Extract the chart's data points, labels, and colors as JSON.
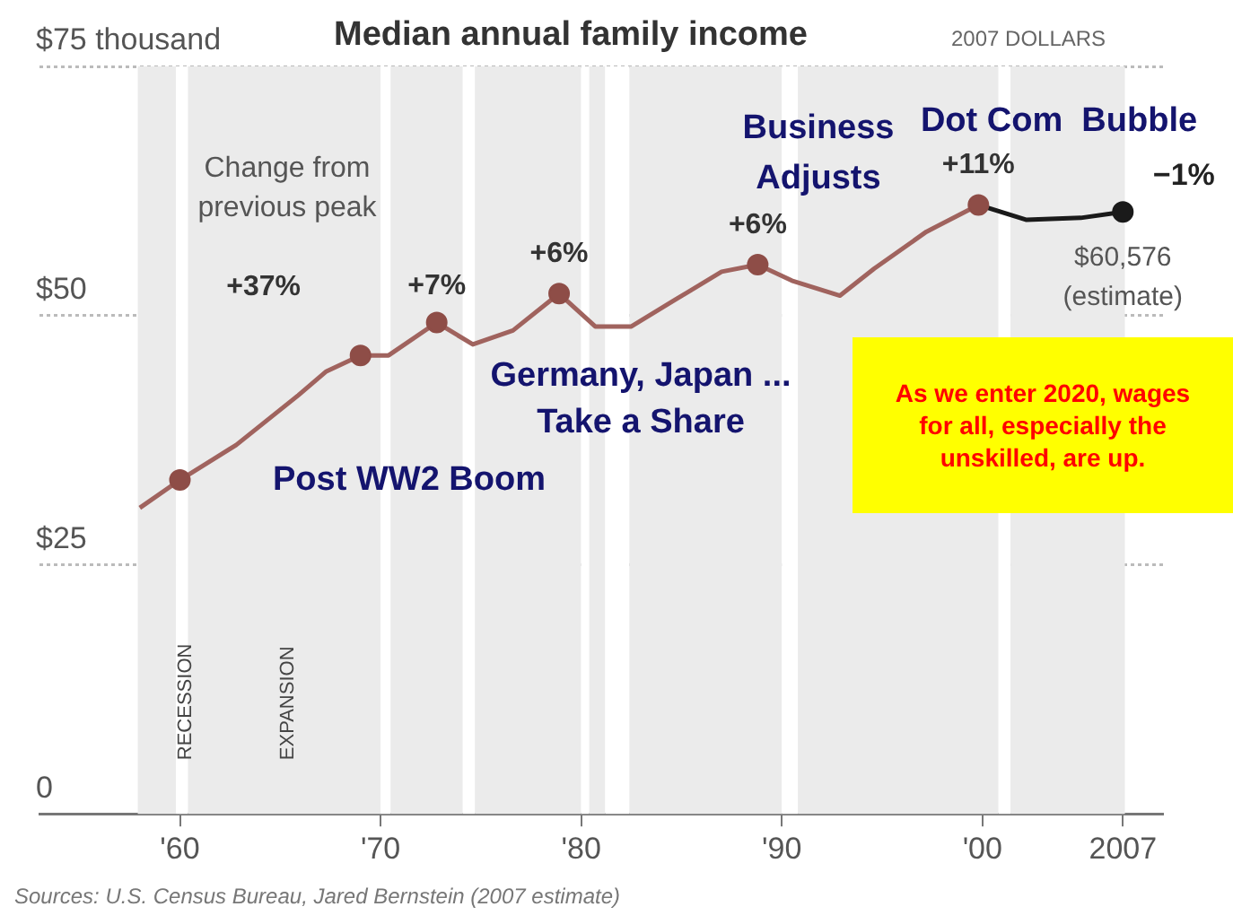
{
  "chart_data": {
    "type": "line",
    "title": "Median annual family income",
    "subtitle": "2007 DOLLARS",
    "xlim": [
      1953,
      2009
    ],
    "xticks": [
      {
        "value": 1960,
        "label": "'60"
      },
      {
        "value": 1970,
        "label": "'70"
      },
      {
        "value": 1980,
        "label": "'80"
      },
      {
        "value": 1990,
        "label": "'90"
      },
      {
        "value": 2000,
        "label": "'00"
      },
      2007
    ],
    "ylim": [
      0,
      75
    ],
    "yticks": [
      0,
      {
        "value": 25,
        "label": "$25"
      },
      {
        "value": 50,
        "label": "$50"
      },
      {
        "value": 75,
        "label": "$75 thousand"
      }
    ],
    "grid": "y",
    "legend": false,
    "marker": "none",
    "series": [
      {
        "color": "#a0635e",
        "x": [
          1958,
          1960,
          1962.8,
          1965.9,
          1967.3,
          1969,
          1970.4,
          1972.8,
          1974.6,
          1976.6,
          1978.9,
          1980.7,
          1982.5,
          1984.7,
          1987,
          1988.8,
          1990.5,
          1992.9,
          1994.6,
          1997.2,
          1999.8
        ],
        "values": [
          30.7,
          33.5,
          37,
          42,
          44.4,
          46,
          46,
          49.3,
          47.1,
          48.5,
          52.2,
          48.9,
          48.9,
          51.6,
          54.4,
          55.1,
          53.5,
          52,
          54.7,
          58.4,
          61.1
        ]
      },
      {
        "color": "#1a1a1a",
        "x": [
          1999.8,
          2002.2,
          2004.9,
          2007
        ],
        "values": [
          61.1,
          59.6,
          59.8,
          60.4
        ]
      },
      {
        "type": "scatter",
        "marker": "circle",
        "color": "#8e4d47",
        "x": [
          1960,
          1969,
          1972.8,
          1978.9,
          1988.8,
          1999.8
        ],
        "values": [
          33.5,
          46,
          49.3,
          52.2,
          55.1,
          61.1
        ]
      },
      {
        "type": "scatter",
        "marker": "circle",
        "color": "#1a1a1a",
        "x": [
          2007
        ],
        "values": [
          60.4
        ]
      }
    ],
    "bands": [
      {
        "axis": "x",
        "from": 1957.9,
        "to": 1959.8,
        "color": "#ebebeb"
      },
      {
        "axis": "x",
        "from": 1959.8,
        "to": 1960.4,
        "color": "#ffffff",
        "label": "RECESSION"
      },
      {
        "axis": "x",
        "from": 1960.4,
        "to": 1970,
        "color": "#ebebeb",
        "label": "EXPANSION"
      },
      {
        "axis": "x",
        "from": 1970,
        "to": 1970.5,
        "color": "#ffffff"
      },
      {
        "axis": "x",
        "from": 1970.5,
        "to": 1974.1,
        "color": "#ebebeb"
      },
      {
        "axis": "x",
        "from": 1974.1,
        "to": 1974.7,
        "color": "#ffffff"
      },
      {
        "axis": "x",
        "from": 1974.7,
        "to": 1980,
        "color": "#ebebeb"
      },
      {
        "axis": "x",
        "from": 1980,
        "to": 1980.4,
        "color": "#ffffff"
      },
      {
        "axis": "x",
        "from": 1980.4,
        "to": 1981.2,
        "color": "#ebebeb"
      },
      {
        "axis": "x",
        "from": 1981.2,
        "to": 1982.4,
        "color": "#ffffff"
      },
      {
        "axis": "x",
        "from": 1982.4,
        "to": 1990,
        "color": "#ebebeb"
      },
      {
        "axis": "x",
        "from": 1990,
        "to": 1990.8,
        "color": "#ffffff"
      },
      {
        "axis": "x",
        "from": 1990.8,
        "to": 2000.8,
        "color": "#ebebeb"
      },
      {
        "axis": "x",
        "from": 2000.8,
        "to": 2001.4,
        "color": "#ffffff"
      },
      {
        "axis": "x",
        "from": 2001.4,
        "to": 2007.1,
        "color": "#ebebeb"
      }
    ],
    "annotations": [
      {
        "text": "+37%",
        "x": 1969,
        "y": 46
      },
      {
        "text": "+7%",
        "x": 1972.8,
        "y": 49.3
      },
      {
        "text": "+6%",
        "x": 1978.9,
        "y": 52.2
      },
      {
        "text": "+6%",
        "x": 1988.8,
        "y": 55.1
      },
      {
        "text": "+11%",
        "x": 1999.8,
        "y": 61.1
      },
      {
        "text": "−1%",
        "x": 2007,
        "y": 60.4
      },
      {
        "text": "$60,576 (estimate)",
        "x": 2007,
        "y": 60.4
      },
      "Change from previous peak",
      "Post WW2 Boom",
      "Germany, Japan ... Take a Share",
      "Business Adjusts",
      "Dot Com  Bubble",
      "As we enter 2020, wages for all, especially the unskilled, are up.",
      "Sources: U.S. Census Bureau, Jared Bernstein (2007 estimate)"
    ]
  }
}
